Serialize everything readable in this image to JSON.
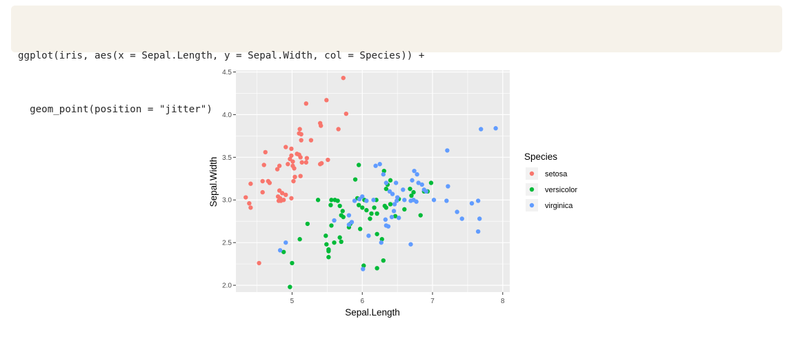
{
  "code": {
    "lines": [
      "ggplot(iris, aes(x = Sepal.Length, y = Sepal.Width, col = Species)) +",
      "  geom_point(position = \"jitter\")"
    ]
  },
  "chart_data": {
    "type": "scatter",
    "title": "",
    "xlabel": "Sepal.Length",
    "ylabel": "Sepal.Width",
    "xlim": [
      4.2,
      8.1
    ],
    "ylim": [
      1.92,
      4.52
    ],
    "xticks": [
      5,
      6,
      7,
      8
    ],
    "yticks": [
      2.0,
      2.5,
      3.0,
      3.5,
      4.0,
      4.5
    ],
    "ytick_labels": [
      "2.0",
      "2.5",
      "3.0",
      "3.5",
      "4.0",
      "4.5"
    ],
    "grid": true,
    "legend": {
      "title": "Species",
      "position": "right"
    },
    "series": [
      {
        "name": "setosa",
        "color": "#F8766D",
        "points": [
          [
            5.73,
            4.43
          ],
          [
            5.77,
            4.01
          ],
          [
            5.49,
            4.17
          ],
          [
            5.66,
            3.83
          ],
          [
            5.2,
            4.13
          ],
          [
            5.4,
            3.9
          ],
          [
            5.41,
            3.87
          ],
          [
            5.27,
            3.7
          ],
          [
            5.11,
            3.83
          ],
          [
            5.1,
            3.78
          ],
          [
            5.13,
            3.77
          ],
          [
            5.13,
            3.7
          ],
          [
            4.91,
            3.62
          ],
          [
            4.99,
            3.6
          ],
          [
            5.07,
            3.54
          ],
          [
            4.99,
            3.52
          ],
          [
            5.1,
            3.53
          ],
          [
            5.12,
            3.5
          ],
          [
            4.97,
            3.48
          ],
          [
            5.01,
            3.45
          ],
          [
            5.14,
            3.44
          ],
          [
            5.2,
            3.44
          ],
          [
            5.21,
            3.49
          ],
          [
            5.01,
            3.4
          ],
          [
            5.03,
            3.37
          ],
          [
            4.94,
            3.42
          ],
          [
            4.82,
            3.4
          ],
          [
            4.79,
            3.36
          ],
          [
            5.4,
            3.42
          ],
          [
            5.42,
            3.43
          ],
          [
            5.51,
            3.47
          ],
          [
            4.62,
            3.56
          ],
          [
            4.6,
            3.41
          ],
          [
            4.58,
            3.22
          ],
          [
            4.66,
            3.22
          ],
          [
            4.68,
            3.2
          ],
          [
            4.41,
            3.19
          ],
          [
            4.58,
            3.09
          ],
          [
            4.82,
            3.11
          ],
          [
            4.86,
            3.08
          ],
          [
            4.91,
            3.06
          ],
          [
            4.8,
            3.04
          ],
          [
            4.83,
            3.02
          ],
          [
            4.81,
            2.99
          ],
          [
            4.84,
            2.99
          ],
          [
            4.88,
            3.0
          ],
          [
            4.99,
            3.02
          ],
          [
            4.34,
            3.03
          ],
          [
            4.39,
            2.96
          ],
          [
            4.41,
            2.91
          ],
          [
            5.04,
            3.27
          ],
          [
            5.12,
            3.28
          ],
          [
            5.02,
            3.22
          ],
          [
            4.53,
            2.26
          ]
        ]
      },
      {
        "name": "versicolor",
        "color": "#00BA38",
        "points": [
          [
            4.97,
            1.98
          ],
          [
            5.0,
            2.26
          ],
          [
            4.88,
            2.39
          ],
          [
            5.11,
            2.54
          ],
          [
            5.22,
            2.72
          ],
          [
            5.37,
            3.0
          ],
          [
            5.48,
            2.58
          ],
          [
            5.49,
            2.48
          ],
          [
            5.52,
            2.42
          ],
          [
            5.52,
            2.4
          ],
          [
            5.52,
            2.33
          ],
          [
            5.56,
            2.7
          ],
          [
            5.6,
            2.5
          ],
          [
            5.68,
            2.56
          ],
          [
            5.7,
            2.51
          ],
          [
            5.55,
            2.94
          ],
          [
            5.56,
            3.0
          ],
          [
            5.61,
            3.0
          ],
          [
            5.65,
            2.99
          ],
          [
            5.68,
            2.93
          ],
          [
            5.7,
            2.82
          ],
          [
            5.73,
            2.8
          ],
          [
            5.72,
            2.87
          ],
          [
            5.81,
            2.68
          ],
          [
            5.83,
            2.72
          ],
          [
            5.95,
            2.94
          ],
          [
            5.93,
            3.02
          ],
          [
            5.95,
            3.41
          ],
          [
            5.9,
            3.24
          ],
          [
            5.97,
            2.66
          ],
          [
            6.0,
            2.91
          ],
          [
            6.02,
            2.23
          ],
          [
            6.06,
            2.88
          ],
          [
            6.11,
            2.78
          ],
          [
            6.13,
            2.84
          ],
          [
            6.17,
            2.91
          ],
          [
            6.21,
            2.84
          ],
          [
            6.2,
            3.0
          ],
          [
            6.21,
            2.6
          ],
          [
            6.21,
            2.2
          ],
          [
            6.3,
            2.29
          ],
          [
            6.28,
            2.54
          ],
          [
            6.32,
            2.93
          ],
          [
            6.34,
            2.91
          ],
          [
            6.31,
            3.34
          ],
          [
            6.34,
            3.13
          ],
          [
            6.36,
            3.18
          ],
          [
            6.4,
            3.23
          ],
          [
            6.47,
            2.81
          ],
          [
            6.52,
            3.01
          ],
          [
            6.6,
            2.89
          ],
          [
            6.68,
            3.13
          ],
          [
            6.7,
            3.05
          ],
          [
            6.73,
            3.09
          ],
          [
            6.83,
            2.82
          ],
          [
            6.88,
            3.1
          ],
          [
            6.98,
            3.2
          ],
          [
            6.93,
            3.1
          ],
          [
            6.03,
            3.0
          ],
          [
            6.4,
            2.95
          ]
        ]
      },
      {
        "name": "virginica",
        "color": "#619CFF",
        "points": [
          [
            4.91,
            2.5
          ],
          [
            4.83,
            2.41
          ],
          [
            5.6,
            2.76
          ],
          [
            5.81,
            2.82
          ],
          [
            5.81,
            2.71
          ],
          [
            5.85,
            2.74
          ],
          [
            5.89,
            2.99
          ],
          [
            5.96,
            3.01
          ],
          [
            6.0,
            3.04
          ],
          [
            6.06,
            2.99
          ],
          [
            6.09,
            2.58
          ],
          [
            6.01,
            2.19
          ],
          [
            6.19,
            3.4
          ],
          [
            6.25,
            3.42
          ],
          [
            6.3,
            3.3
          ],
          [
            6.34,
            3.2
          ],
          [
            6.39,
            3.1
          ],
          [
            6.43,
            3.07
          ],
          [
            6.48,
            3.2
          ],
          [
            6.5,
            3.03
          ],
          [
            6.49,
            2.99
          ],
          [
            6.33,
            2.77
          ],
          [
            6.34,
            2.7
          ],
          [
            6.37,
            2.69
          ],
          [
            6.42,
            2.8
          ],
          [
            6.27,
            2.5
          ],
          [
            6.52,
            2.79
          ],
          [
            6.6,
            3.0
          ],
          [
            6.69,
            2.99
          ],
          [
            6.73,
            3.0
          ],
          [
            6.77,
            2.98
          ],
          [
            6.71,
            3.23
          ],
          [
            6.74,
            3.34
          ],
          [
            6.78,
            3.3
          ],
          [
            6.8,
            3.2
          ],
          [
            6.85,
            3.18
          ],
          [
            6.88,
            3.12
          ],
          [
            6.91,
            3.1
          ],
          [
            6.69,
            2.48
          ],
          [
            7.02,
            3.0
          ],
          [
            7.2,
            2.99
          ],
          [
            7.22,
            3.16
          ],
          [
            7.21,
            3.58
          ],
          [
            7.35,
            2.86
          ],
          [
            7.42,
            2.78
          ],
          [
            7.56,
            2.96
          ],
          [
            7.65,
            2.99
          ],
          [
            7.65,
            2.63
          ],
          [
            7.67,
            2.78
          ],
          [
            7.69,
            3.83
          ],
          [
            7.9,
            3.84
          ],
          [
            6.16,
            3.0
          ],
          [
            6.58,
            3.12
          ],
          [
            6.45,
            2.87
          ],
          [
            6.46,
            2.95
          ]
        ]
      }
    ]
  }
}
